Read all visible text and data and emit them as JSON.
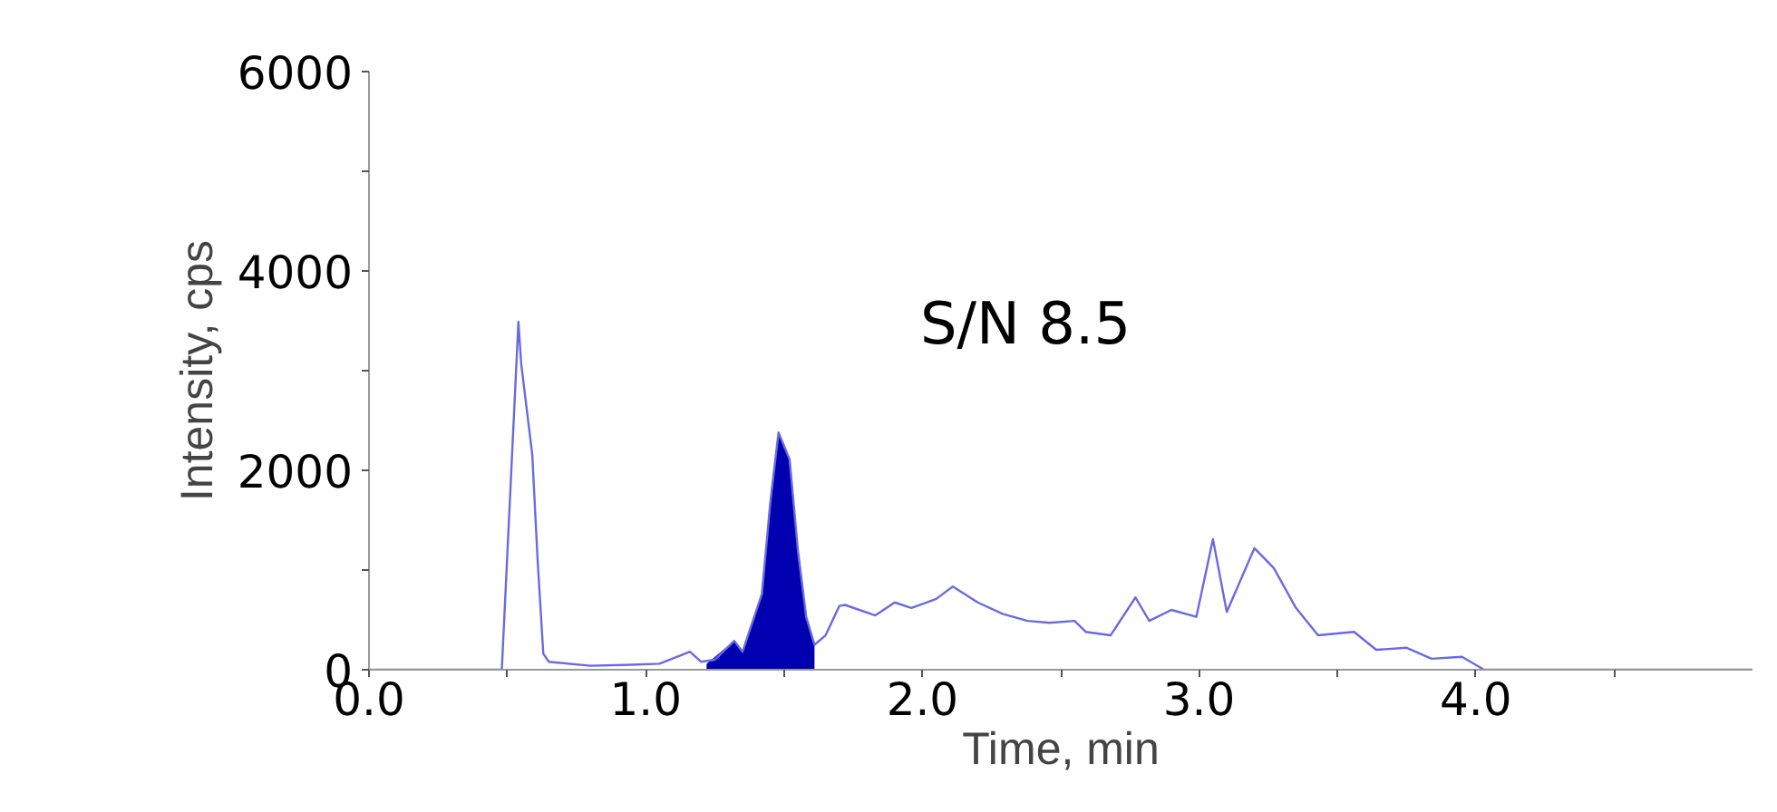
{
  "chart_data": {
    "type": "line",
    "xlabel": "Time, min",
    "ylabel": "Intensity, cps",
    "annotations": [
      "S/N 8.5"
    ],
    "xlim": [
      0,
      5
    ],
    "ylim": [
      0,
      6000
    ],
    "xticks": [
      {
        "value": 0,
        "label": "0.0"
      },
      {
        "value": 0.5,
        "label": null
      },
      {
        "value": 1,
        "label": "1.0"
      },
      {
        "value": 1.5,
        "label": null
      },
      {
        "value": 2,
        "label": "2.0"
      },
      {
        "value": 2.5,
        "label": null
      },
      {
        "value": 3,
        "label": "3.0"
      },
      {
        "value": 3.5,
        "label": null
      },
      {
        "value": 4,
        "label": "4.0"
      },
      {
        "value": 4.5,
        "label": null
      }
    ],
    "yticks": [
      0,
      {
        "value": 1000,
        "label": null
      },
      2000,
      {
        "value": 3000,
        "label": null
      },
      4000,
      {
        "value": 5000,
        "label": null
      },
      6000
    ],
    "grid": false,
    "series": [
      {
        "color": "#6a6ae0",
        "x": [
          0,
          0.48,
          0.54,
          0.55,
          0.59,
          0.61,
          0.63,
          0.65,
          0.8,
          0.95,
          1.05,
          1.16,
          1.2,
          1.25,
          1.32,
          1.35,
          1.42,
          1.45,
          1.48,
          1.52,
          1.55,
          1.58,
          1.61,
          1.65,
          1.7,
          1.72,
          1.83,
          1.9,
          1.96,
          2.05,
          2.11,
          2.2,
          2.29,
          2.38,
          2.46,
          2.55,
          2.59,
          2.68,
          2.77,
          2.82,
          2.9,
          2.99,
          3.05,
          3.1,
          3.2,
          3.27,
          3.35,
          3.43,
          3.56,
          3.64,
          3.75,
          3.84,
          3.95,
          4.03,
          5
        ],
        "values": [
          0,
          0,
          3490,
          3070,
          2160,
          1070,
          160,
          80,
          40,
          50,
          60,
          180,
          80,
          100,
          290,
          180,
          760,
          1670,
          2380,
          2110,
          1200,
          530,
          250,
          345,
          640,
          650,
          545,
          675,
          620,
          710,
          835,
          675,
          560,
          490,
          470,
          490,
          380,
          345,
          725,
          490,
          600,
          530,
          1310,
          580,
          1220,
          1020,
          620,
          345,
          380,
          200,
          220,
          110,
          130,
          0,
          0
        ]
      },
      {
        "type": "area",
        "color": "#0000b0",
        "x": [
          1.22,
          1.32,
          1.35,
          1.42,
          1.45,
          1.48,
          1.52,
          1.55,
          1.58,
          1.61
        ],
        "values": [
          60,
          290,
          180,
          760,
          1670,
          2380,
          2110,
          1200,
          530,
          250
        ]
      }
    ]
  }
}
